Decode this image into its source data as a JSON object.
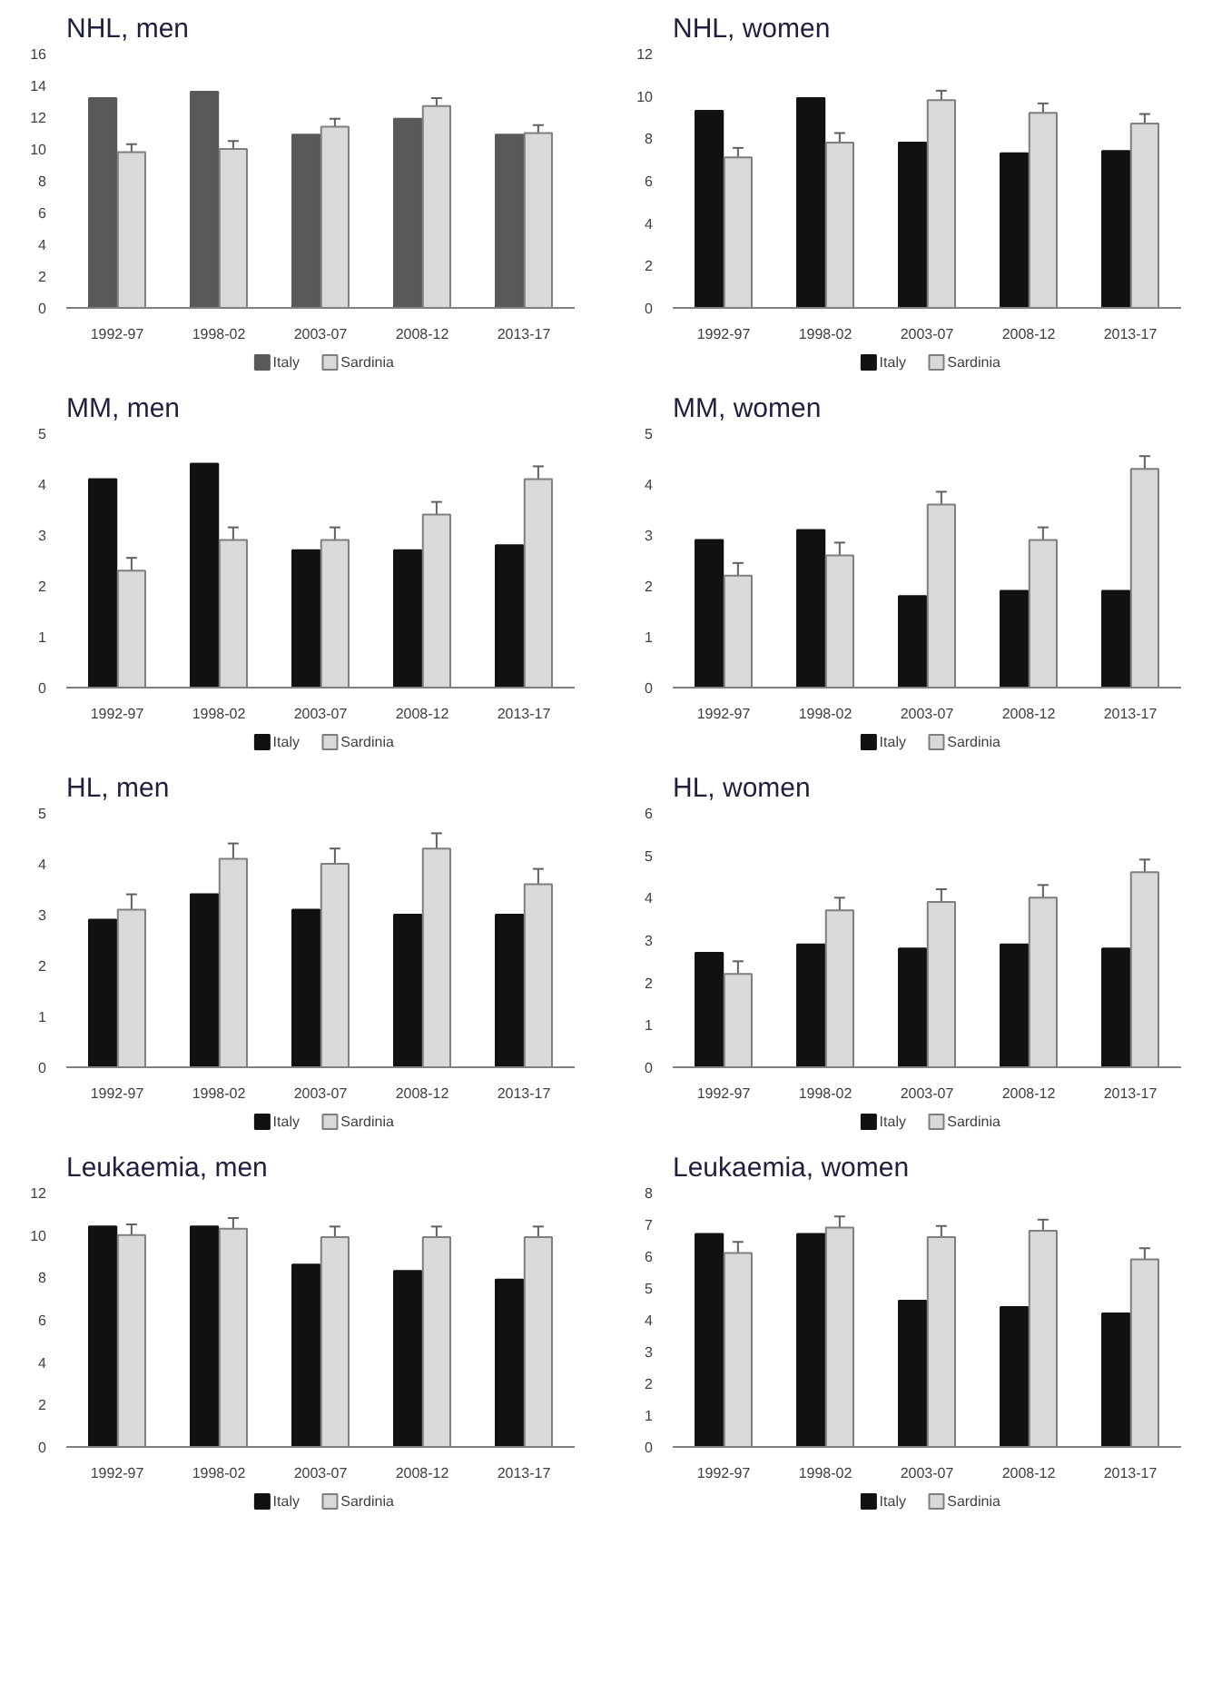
{
  "chart_data": [
    {
      "type": "bar",
      "title": "NHL, men",
      "categories": [
        "1992-97",
        "1998-02",
        "2003-07",
        "2008-12",
        "2013-17"
      ],
      "ylim": [
        0,
        16
      ],
      "yticks": [
        0,
        2,
        4,
        6,
        8,
        10,
        12,
        14,
        16
      ],
      "legend": "bottom",
      "series": [
        {
          "name": "Italy",
          "color": "#595959",
          "values": [
            13.2,
            13.6,
            10.9,
            11.9,
            10.9
          ]
        },
        {
          "name": "Sardinia",
          "color": "#d9d9d9",
          "values": [
            9.8,
            10.0,
            11.4,
            12.7,
            11.0
          ],
          "errors": [
            0.5,
            0.5,
            0.5,
            0.5,
            0.5
          ]
        }
      ]
    },
    {
      "type": "bar",
      "title": "NHL, women",
      "categories": [
        "1992-97",
        "1998-02",
        "2003-07",
        "2008-12",
        "2013-17"
      ],
      "ylim": [
        0,
        12
      ],
      "yticks": [
        0,
        2,
        4,
        6,
        8,
        10,
        12
      ],
      "legend": "bottom",
      "series": [
        {
          "name": "Italy",
          "color": "#111111",
          "values": [
            9.3,
            9.9,
            7.8,
            7.3,
            7.4
          ]
        },
        {
          "name": "Sardinia",
          "color": "#d9d9d9",
          "values": [
            7.1,
            7.8,
            9.8,
            9.2,
            8.7
          ],
          "errors": [
            0.45,
            0.45,
            0.45,
            0.45,
            0.45
          ]
        }
      ]
    },
    {
      "type": "bar",
      "title": "MM, men",
      "categories": [
        "1992-97",
        "1998-02",
        "2003-07",
        "2008-12",
        "2013-17"
      ],
      "ylim": [
        0,
        5
      ],
      "yticks": [
        0,
        1,
        2,
        3,
        4,
        5
      ],
      "legend": "bottom",
      "series": [
        {
          "name": "Italy",
          "color": "#111111",
          "values": [
            4.1,
            4.4,
            2.7,
            2.7,
            2.8
          ]
        },
        {
          "name": "Sardinia",
          "color": "#d9d9d9",
          "values": [
            2.3,
            2.9,
            2.9,
            3.4,
            4.1
          ],
          "errors": [
            0.25,
            0.25,
            0.25,
            0.25,
            0.25
          ]
        }
      ]
    },
    {
      "type": "bar",
      "title": "MM, women",
      "categories": [
        "1992-97",
        "1998-02",
        "2003-07",
        "2008-12",
        "2013-17"
      ],
      "ylim": [
        0,
        5
      ],
      "yticks": [
        0,
        1,
        2,
        3,
        4,
        5
      ],
      "legend": "bottom",
      "series": [
        {
          "name": "Italy",
          "color": "#111111",
          "values": [
            2.9,
            3.1,
            1.8,
            1.9,
            1.9
          ]
        },
        {
          "name": "Sardinia",
          "color": "#d9d9d9",
          "values": [
            2.2,
            2.6,
            3.6,
            2.9,
            4.3
          ],
          "errors": [
            0.25,
            0.25,
            0.25,
            0.25,
            0.25
          ]
        }
      ]
    },
    {
      "type": "bar",
      "title": "HL, men",
      "categories": [
        "1992-97",
        "1998-02",
        "2003-07",
        "2008-12",
        "2013-17"
      ],
      "ylim": [
        0,
        5
      ],
      "yticks": [
        0,
        1,
        2,
        3,
        4,
        5
      ],
      "legend": "bottom",
      "series": [
        {
          "name": "Italy",
          "color": "#111111",
          "values": [
            2.9,
            3.4,
            3.1,
            3.0,
            3.0
          ]
        },
        {
          "name": "Sardinia",
          "color": "#d9d9d9",
          "values": [
            3.1,
            4.1,
            4.0,
            4.3,
            3.6
          ],
          "errors": [
            0.3,
            0.3,
            0.3,
            0.3,
            0.3
          ]
        }
      ]
    },
    {
      "type": "bar",
      "title": "HL, women",
      "categories": [
        "1992-97",
        "1998-02",
        "2003-07",
        "2008-12",
        "2013-17"
      ],
      "ylim": [
        0,
        6
      ],
      "yticks": [
        0,
        1,
        2,
        3,
        4,
        5,
        6
      ],
      "legend": "bottom",
      "series": [
        {
          "name": "Italy",
          "color": "#111111",
          "values": [
            2.7,
            2.9,
            2.8,
            2.9,
            2.8
          ]
        },
        {
          "name": "Sardinia",
          "color": "#d9d9d9",
          "values": [
            2.2,
            3.7,
            3.9,
            4.0,
            4.6
          ],
          "errors": [
            0.3,
            0.3,
            0.3,
            0.3,
            0.3
          ]
        }
      ]
    },
    {
      "type": "bar",
      "title": "Leukaemia, men",
      "categories": [
        "1992-97",
        "1998-02",
        "2003-07",
        "2008-12",
        "2013-17"
      ],
      "ylim": [
        0,
        12
      ],
      "yticks": [
        0,
        2,
        4,
        6,
        8,
        10,
        12
      ],
      "legend": "bottom",
      "series": [
        {
          "name": "Italy",
          "color": "#111111",
          "values": [
            10.4,
            10.4,
            8.6,
            8.3,
            7.9
          ]
        },
        {
          "name": "Sardinia",
          "color": "#d9d9d9",
          "values": [
            10.0,
            10.3,
            9.9,
            9.9,
            9.9
          ],
          "errors": [
            0.5,
            0.5,
            0.5,
            0.5,
            0.5
          ]
        }
      ]
    },
    {
      "type": "bar",
      "title": "Leukaemia, women",
      "categories": [
        "1992-97",
        "1998-02",
        "2003-07",
        "2008-12",
        "2013-17"
      ],
      "ylim": [
        0,
        8
      ],
      "yticks": [
        0,
        1,
        2,
        3,
        4,
        5,
        6,
        7,
        8
      ],
      "legend": "bottom",
      "series": [
        {
          "name": "Italy",
          "color": "#111111",
          "values": [
            6.7,
            6.7,
            4.6,
            4.4,
            4.2
          ]
        },
        {
          "name": "Sardinia",
          "color": "#d9d9d9",
          "values": [
            6.1,
            6.9,
            6.6,
            6.8,
            5.9
          ],
          "errors": [
            0.35,
            0.35,
            0.35,
            0.35,
            0.35
          ]
        }
      ]
    }
  ]
}
